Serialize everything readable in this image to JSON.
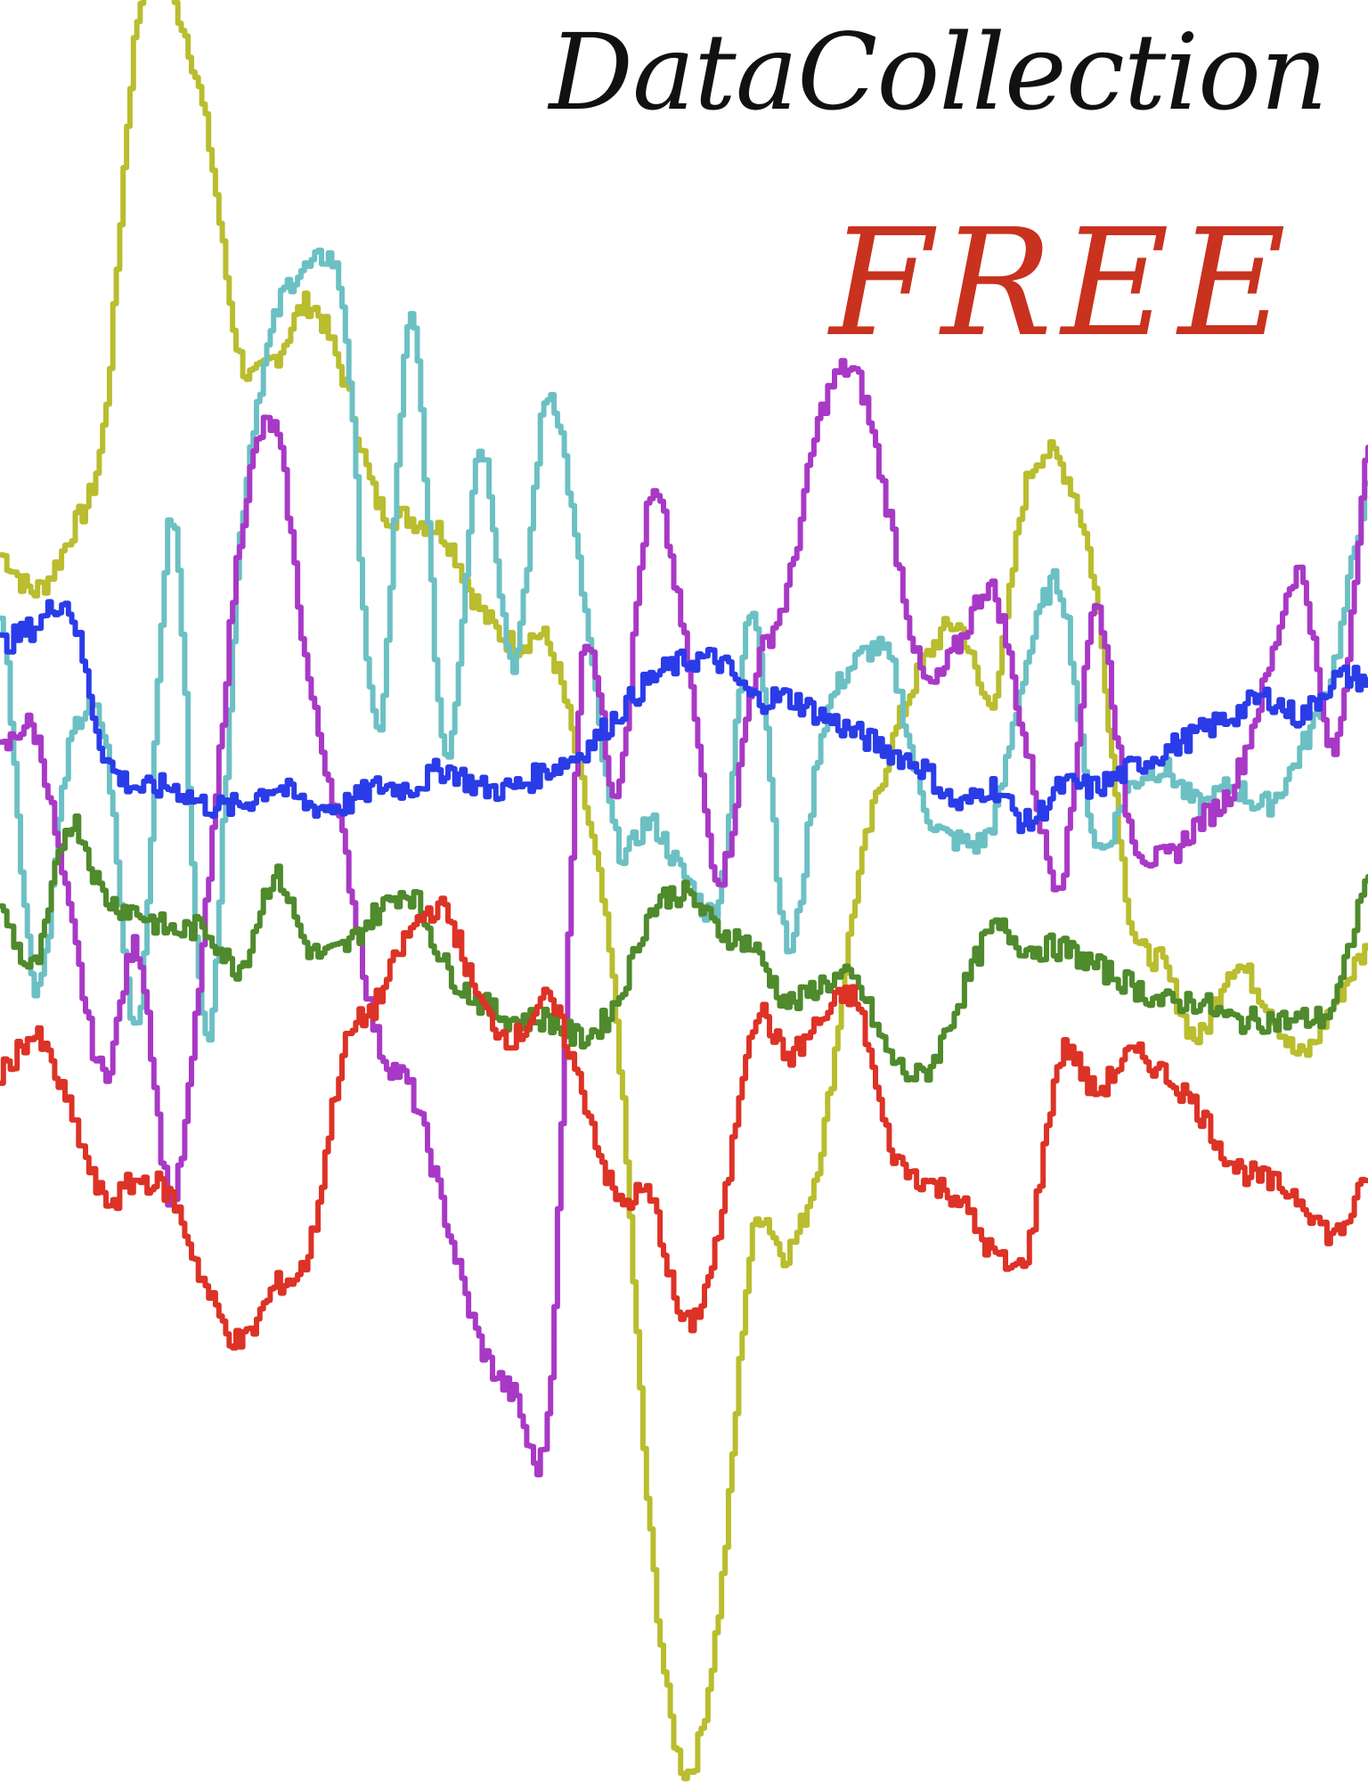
{
  "cover": {
    "title": "DataCollection",
    "subtitle": "FREE",
    "title_color": "#111111",
    "subtitle_color": "#c8321e"
  },
  "chart_data": {
    "type": "line",
    "title": "",
    "xlabel": "",
    "ylabel": "",
    "grid": false,
    "legend": "none",
    "ylim": [
      0,
      100
    ],
    "x": [
      0,
      1,
      2,
      3,
      4,
      5,
      6,
      7,
      8,
      9,
      10,
      11,
      12,
      13,
      14,
      15,
      16,
      17,
      18,
      19,
      20,
      21,
      22,
      23,
      24,
      25,
      26,
      27,
      28,
      29,
      30,
      31,
      32,
      33,
      34,
      35,
      36,
      37,
      38,
      39,
      40
    ],
    "series": [
      {
        "color": "#b9bd2e",
        "values": [
          69,
          67,
          70,
          76,
          99,
          100,
          93,
          80,
          80,
          83,
          79,
          72,
          71,
          70,
          66,
          64,
          64,
          56,
          43,
          14,
          1,
          10,
          31,
          30,
          36,
          50,
          58,
          63,
          65,
          61,
          73,
          74,
          67,
          49,
          46,
          42,
          46,
          44,
          41,
          44,
          47
        ]
      },
      {
        "color": "#6cc0c4",
        "values": [
          66,
          45,
          58,
          59,
          43,
          71,
          42,
          70,
          82,
          85,
          83,
          59,
          82,
          58,
          75,
          63,
          78,
          67,
          53,
          54,
          51,
          50,
          66,
          47,
          59,
          63,
          63,
          55,
          53,
          54,
          63,
          67,
          53,
          56,
          57,
          55,
          56,
          55,
          58,
          63,
          73
        ]
      },
      {
        "color": "#a839c6",
        "values": [
          58,
          59,
          49,
          40,
          47,
          33,
          49,
          70,
          76,
          62,
          53,
          42,
          39,
          32,
          25,
          22,
          21,
          63,
          56,
          72,
          64,
          51,
          62,
          67,
          77,
          79,
          71,
          62,
          64,
          67,
          58,
          51,
          66,
          54,
          52,
          54,
          56,
          62,
          68,
          58,
          75
        ]
      },
      {
        "color": "#2a3ce8",
        "values": [
          64,
          65,
          66,
          58,
          56,
          56,
          55,
          55,
          56,
          55,
          55,
          56,
          56,
          57,
          56,
          56,
          57,
          58,
          60,
          62,
          63,
          63,
          61,
          61,
          60,
          59,
          58,
          57,
          55,
          56,
          54,
          56,
          56,
          57,
          58,
          59,
          60,
          61,
          60,
          62,
          62
        ]
      },
      {
        "color": "#4f8a2c",
        "values": [
          49,
          46,
          54,
          50,
          49,
          48,
          48,
          46,
          51,
          47,
          47,
          49,
          50,
          46,
          44,
          43,
          43,
          42,
          44,
          49,
          50,
          48,
          47,
          44,
          45,
          45,
          41,
          40,
          44,
          48,
          47,
          47,
          46,
          45,
          44,
          44,
          43,
          43,
          43,
          44,
          51
        ]
      },
      {
        "color": "#dd3226",
        "values": [
          40,
          42,
          38,
          33,
          34,
          33,
          28,
          25,
          28,
          30,
          41,
          44,
          48,
          49,
          44,
          42,
          44,
          39,
          33,
          33,
          26,
          31,
          43,
          41,
          43,
          44,
          36,
          34,
          33,
          30,
          30,
          41,
          39,
          41,
          40,
          38,
          35,
          34,
          33,
          31,
          34
        ]
      }
    ]
  }
}
